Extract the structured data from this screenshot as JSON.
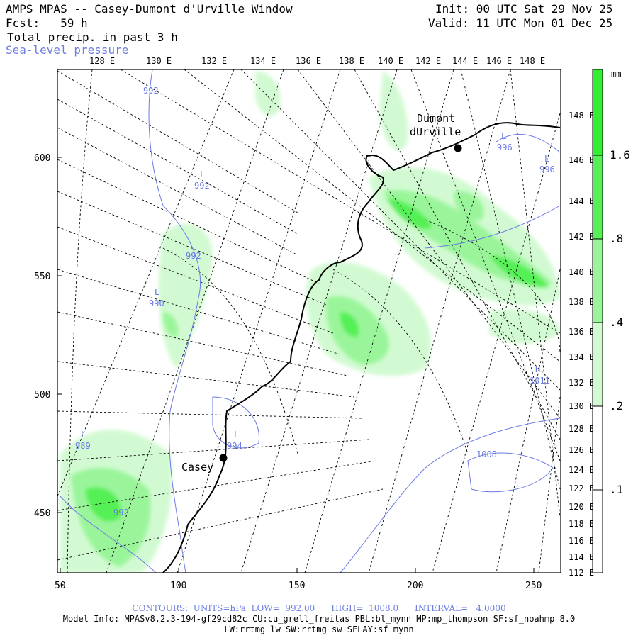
{
  "header": {
    "title": "AMPS MPAS -- Casey-Dumont d'Urville Window",
    "init": "Init: 00 UTC Sat 29 Nov 25",
    "fcst_label": "Fcst:",
    "fcst_value": "59 h",
    "valid": "Valid: 11 UTC Mon 01 Dec 25",
    "field": "Total precip. in past 3 h",
    "overlay": "Sea-level pressure"
  },
  "axes": {
    "top_lon": [
      "128 E",
      "130 E",
      "132 E",
      "134 E",
      "136 E",
      "138 E",
      "140 E",
      "142 E",
      "144 E",
      "146 E",
      "148 E"
    ],
    "right_lon": [
      "148 E",
      "146 E",
      "144 E",
      "142 E",
      "140 E",
      "138 E",
      "136 E",
      "134 E",
      "132 E",
      "130 E",
      "128 E",
      "126 E",
      "124 E",
      "122 E",
      "120 E",
      "118 E",
      "116 E",
      "114 E",
      "112 E"
    ],
    "left_ticks": [
      "600",
      "550",
      "500",
      "450"
    ],
    "bottom_ticks": [
      "50",
      "100",
      "150",
      "200",
      "250"
    ]
  },
  "colorbar": {
    "unit": "mm",
    "labels": [
      "1.6",
      ".8",
      ".4",
      ".2",
      ".1"
    ],
    "colors": [
      "#33ee33",
      "#55f055",
      "#9af59a",
      "#d2fad2",
      "#ffffff"
    ]
  },
  "stations": {
    "dumont": "Dumont\ndUrville",
    "casey": "Casey"
  },
  "pressure_labels": [
    {
      "text": "992"
    },
    {
      "text": "L"
    },
    {
      "text": "992"
    },
    {
      "text": "992"
    },
    {
      "text": "L"
    },
    {
      "text": "990"
    },
    {
      "text": "L"
    },
    {
      "text": "996"
    },
    {
      "text": "L"
    },
    {
      "text": "996"
    },
    {
      "text": "H"
    },
    {
      "text": "1011"
    },
    {
      "text": "L"
    },
    {
      "text": "989"
    },
    {
      "text": "L"
    },
    {
      "text": "994"
    },
    {
      "text": "1008"
    },
    {
      "text": "992"
    }
  ],
  "footer": {
    "contours": "CONTOURS:  UNITS=hPa  LOW=  992.00      HIGH=  1008.0      INTERVAL=   4.0000",
    "model1": "Model Info: MPASv8.2.3-194-gf29cd82c CU:cu_grell_freitas PBL:bl_mynn MP:mp_thompson SF:sf_noahmp 8.0",
    "model2": "LW:rrtmg_lw SW:rrtmg_sw SFLAY:sf_mynn"
  }
}
